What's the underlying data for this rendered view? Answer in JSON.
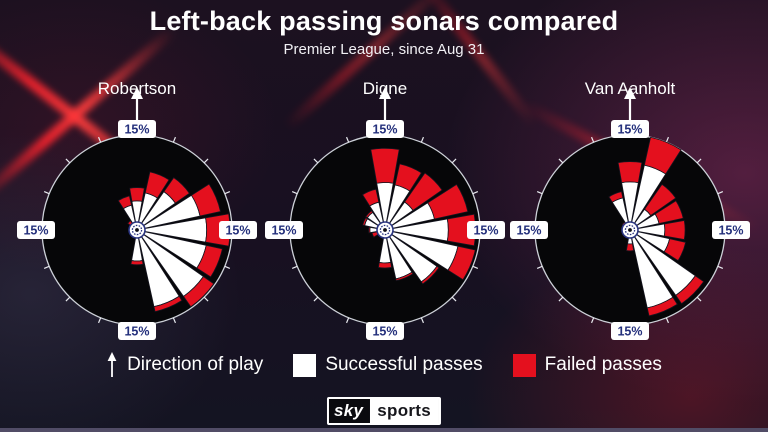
{
  "header": {
    "title": "Left-back passing sonars compared",
    "subtitle": "Premier League, since Aug 31"
  },
  "chart_data": {
    "type": "polar_bar",
    "description": "Passing sonars: 16 direction sectors of 22.5 degrees, 0 = direction of play (up). Bar length = share of passes (%); white segment = successful, red segment = failed. Outer rim = 15%.",
    "rim_pct": 15,
    "axis_label": "15%",
    "sector_width_deg": 22.5,
    "colors": {
      "success": "#ffffff",
      "fail": "#e4101e",
      "circle_fill": "#060608",
      "circle_stroke": "#cdd1d8",
      "tick": "#e9ebf0",
      "wedge_outline": "#15151f",
      "label_text": "#24307c",
      "label_bg": "#ffffff",
      "bullseye_ring": "#2a3480"
    },
    "players": [
      {
        "name": "Robertson",
        "sectors": [
          {
            "angle": 0,
            "success": 4.6,
            "fail": 2.1
          },
          {
            "angle": 22.5,
            "success": 6.0,
            "fail": 3.4
          },
          {
            "angle": 45,
            "success": 7.4,
            "fail": 2.7
          },
          {
            "angle": 67.5,
            "success": 10.2,
            "fail": 3.3
          },
          {
            "angle": 90,
            "success": 11.0,
            "fail": 3.7
          },
          {
            "angle": 112.5,
            "success": 11.2,
            "fail": 2.6
          },
          {
            "angle": 135,
            "success": 12.8,
            "fail": 2.0
          },
          {
            "angle": 157.5,
            "success": 12.4,
            "fail": 0.8
          },
          {
            "angle": 180,
            "success": 4.9,
            "fail": 0.6
          },
          {
            "angle": 202.5,
            "success": 0,
            "fail": 0
          },
          {
            "angle": 225,
            "success": 0,
            "fail": 0
          },
          {
            "angle": 247.5,
            "success": 0,
            "fail": 0
          },
          {
            "angle": 270,
            "success": 0,
            "fail": 0
          },
          {
            "angle": 292.5,
            "success": 0,
            "fail": 0
          },
          {
            "angle": 315,
            "success": 0.9,
            "fail": 0.9
          },
          {
            "angle": 337.5,
            "success": 4.0,
            "fail": 1.5
          }
        ]
      },
      {
        "name": "Digne",
        "sectors": [
          {
            "angle": 0,
            "success": 7.5,
            "fail": 5.4
          },
          {
            "angle": 22.5,
            "success": 7.3,
            "fail": 3.4
          },
          {
            "angle": 45,
            "success": 5.4,
            "fail": 5.6
          },
          {
            "angle": 67.5,
            "success": 8.0,
            "fail": 5.4
          },
          {
            "angle": 90,
            "success": 10.0,
            "fail": 4.3
          },
          {
            "angle": 112.5,
            "success": 11.8,
            "fail": 2.8
          },
          {
            "angle": 135,
            "success": 10.0,
            "fail": 0.4
          },
          {
            "angle": 157.5,
            "success": 7.9,
            "fail": 0.3
          },
          {
            "angle": 180,
            "success": 5.2,
            "fail": 0.8
          },
          {
            "angle": 202.5,
            "success": 0,
            "fail": 0
          },
          {
            "angle": 225,
            "success": 0,
            "fail": 0
          },
          {
            "angle": 247.5,
            "success": 0.5,
            "fail": 1.6
          },
          {
            "angle": 270,
            "success": 2.4,
            "fail": 0.2
          },
          {
            "angle": 292.5,
            "success": 3.3,
            "fail": 0.3
          },
          {
            "angle": 315,
            "success": 3.4,
            "fail": 0.3
          },
          {
            "angle": 337.5,
            "success": 4.5,
            "fail": 2.1
          }
        ]
      },
      {
        "name": "Van Aanholt",
        "sectors": [
          {
            "angle": 0,
            "success": 7.6,
            "fail": 3.2
          },
          {
            "angle": 22.5,
            "success": 10.5,
            "fail": 4.5
          },
          {
            "angle": 45,
            "success": 4.0,
            "fail": 4.8
          },
          {
            "angle": 67.5,
            "success": 4.7,
            "fail": 3.9
          },
          {
            "angle": 90,
            "success": 5.5,
            "fail": 3.2
          },
          {
            "angle": 112.5,
            "success": 6.4,
            "fail": 2.6
          },
          {
            "angle": 135,
            "success": 12.6,
            "fail": 1.6
          },
          {
            "angle": 157.5,
            "success": 12.6,
            "fail": 1.3
          },
          {
            "angle": 180,
            "success": 2.2,
            "fail": 1.1
          },
          {
            "angle": 202.5,
            "success": 0,
            "fail": 0
          },
          {
            "angle": 225,
            "success": 0,
            "fail": 0
          },
          {
            "angle": 247.5,
            "success": 0,
            "fail": 0
          },
          {
            "angle": 270,
            "success": 0,
            "fail": 0
          },
          {
            "angle": 292.5,
            "success": 0,
            "fail": 0
          },
          {
            "angle": 315,
            "success": 0.6,
            "fail": 0.9
          },
          {
            "angle": 337.5,
            "success": 5.2,
            "fail": 1.0
          }
        ]
      }
    ]
  },
  "legend": {
    "direction_label": "Direction of play",
    "success_label": "Successful passes",
    "fail_label": "Failed passes"
  },
  "branding": {
    "sky": "sky",
    "sports": "sports"
  }
}
